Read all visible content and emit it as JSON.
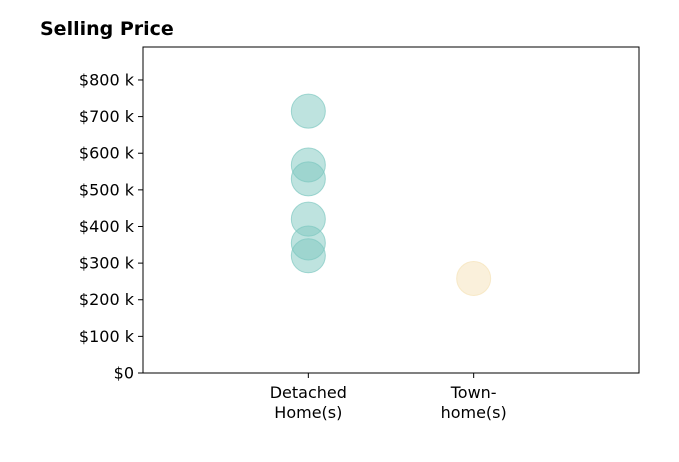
{
  "chart_data": {
    "type": "scatter",
    "title": "Selling Price",
    "xlabel": "",
    "ylabel": "",
    "categories": [
      [
        "Detached",
        "Home(s)"
      ],
      [
        "Town-",
        "home(s)"
      ]
    ],
    "y_ticks": [
      "$0",
      "$100 k",
      "$200 k",
      "$300 k",
      "$400 k",
      "$500 k",
      "$600 k",
      "$700 k",
      "$800 k"
    ],
    "y_tick_values": [
      0,
      100,
      200,
      300,
      400,
      500,
      600,
      700,
      800
    ],
    "ylim": [
      0,
      890
    ],
    "xlim": [
      -1,
      2
    ],
    "grid": false,
    "series": [
      {
        "category_index": 0,
        "color": "#7ec8c0",
        "values": [
          715,
          568,
          530,
          420,
          355,
          320
        ]
      },
      {
        "category_index": 1,
        "color": "#f5e2b8",
        "values": [
          258
        ]
      }
    ]
  }
}
